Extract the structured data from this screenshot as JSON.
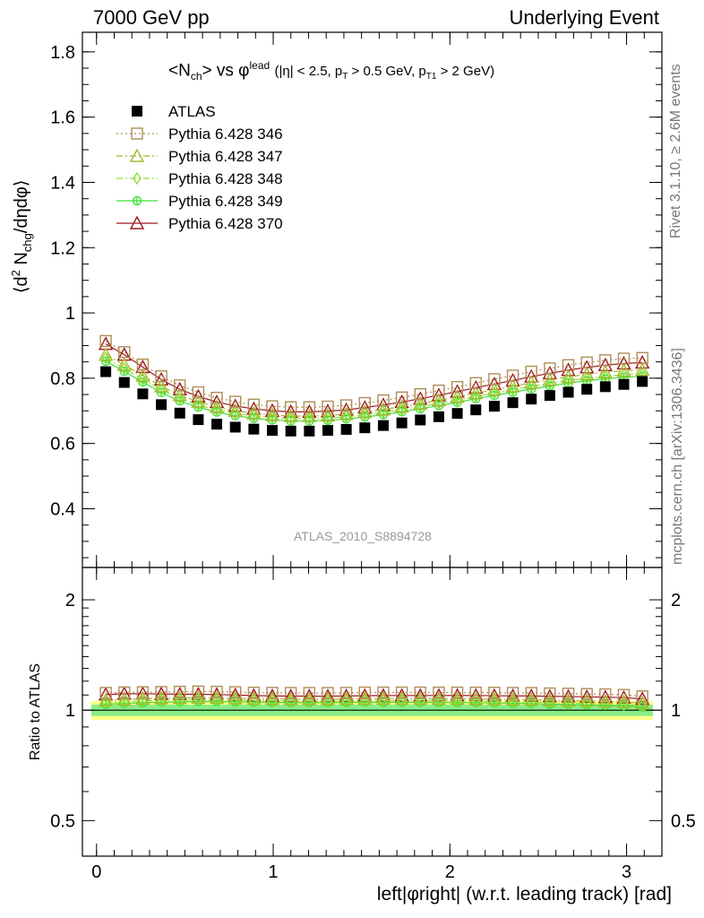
{
  "header": {
    "left": "7000 GeV pp",
    "right": "Underlying Event"
  },
  "side_labels": {
    "rivet": "Rivet 3.1.10, ≥ 2.6M events",
    "mcplots": "mcplots.cern.ch [arXiv:1306.3436]"
  },
  "analysis_id": "ATLAS_2010_S8894728",
  "chart_data": [
    {
      "type": "scatter",
      "title": {
        "main": "<N",
        "sub": "ch",
        "mid": "> vs φ",
        "sup": "lead",
        "cuts_a": "(|η| < 2.5, p",
        "cuts_sub_a": "T",
        "cuts_b": " > 0.5 GeV, p",
        "cuts_sub_b": "T1",
        "cuts_c": " > 2 GeV)"
      },
      "ylabel": {
        "a": "⟨d",
        "sup": "2",
        "b": " N",
        "sub": "chg",
        "c": "/dηdφ⟩"
      },
      "xlim": [
        -0.08,
        3.2
      ],
      "ylim": [
        0.22,
        1.86
      ],
      "yticks": [
        0.4,
        0.6,
        0.8,
        1,
        1.2,
        1.4,
        1.6,
        1.8
      ],
      "yticklabels": [
        "0.4",
        "0.6",
        "0.8",
        "1",
        "1.2",
        "1.4",
        "1.6",
        "1.8"
      ],
      "legend_position": "top-left",
      "x": [
        0.0524,
        0.1571,
        0.2618,
        0.3665,
        0.4712,
        0.576,
        0.6807,
        0.7854,
        0.8901,
        0.9948,
        1.0996,
        1.2043,
        1.309,
        1.4137,
        1.5184,
        1.6232,
        1.7279,
        1.8326,
        1.9373,
        2.042,
        2.1468,
        2.2515,
        2.3562,
        2.4609,
        2.5656,
        2.6704,
        2.7751,
        2.8798,
        2.9845,
        3.0892
      ],
      "series": [
        {
          "name": "ATLAS",
          "color": "#000000",
          "marker": "filled-square",
          "line": "none",
          "values": [
            0.82,
            0.787,
            0.752,
            0.719,
            0.693,
            0.673,
            0.659,
            0.65,
            0.644,
            0.64,
            0.638,
            0.638,
            0.64,
            0.643,
            0.648,
            0.655,
            0.663,
            0.672,
            0.682,
            0.692,
            0.703,
            0.714,
            0.725,
            0.736,
            0.747,
            0.757,
            0.766,
            0.774,
            0.781,
            0.79
          ]
        },
        {
          "name": "Pythia 6.428 346",
          "color": "#b08d57",
          "marker": "open-square",
          "line": "dotted",
          "values": [
            0.914,
            0.88,
            0.842,
            0.806,
            0.778,
            0.757,
            0.74,
            0.728,
            0.719,
            0.714,
            0.711,
            0.711,
            0.713,
            0.717,
            0.724,
            0.732,
            0.741,
            0.751,
            0.762,
            0.773,
            0.785,
            0.797,
            0.808,
            0.82,
            0.83,
            0.84,
            0.848,
            0.855,
            0.86,
            0.862
          ]
        },
        {
          "name": "Pythia 6.428 347",
          "color": "#a8b82e",
          "marker": "open-triangle",
          "line": "dashdot",
          "values": [
            0.872,
            0.841,
            0.808,
            0.775,
            0.748,
            0.728,
            0.712,
            0.7,
            0.692,
            0.687,
            0.684,
            0.684,
            0.686,
            0.69,
            0.696,
            0.704,
            0.713,
            0.722,
            0.732,
            0.743,
            0.754,
            0.765,
            0.775,
            0.786,
            0.795,
            0.804,
            0.812,
            0.818,
            0.823,
            0.826
          ]
        },
        {
          "name": "Pythia 6.428 348",
          "color": "#8fe03a",
          "marker": "open-diamond",
          "line": "dashdot",
          "values": [
            0.862,
            0.83,
            0.797,
            0.765,
            0.738,
            0.718,
            0.703,
            0.692,
            0.684,
            0.679,
            0.676,
            0.676,
            0.678,
            0.682,
            0.688,
            0.695,
            0.704,
            0.713,
            0.723,
            0.733,
            0.744,
            0.755,
            0.765,
            0.775,
            0.784,
            0.793,
            0.8,
            0.806,
            0.811,
            0.814
          ]
        },
        {
          "name": "Pythia 6.428 349",
          "color": "#3ee03a",
          "marker": "open-circle-cross",
          "line": "solid",
          "values": [
            0.852,
            0.821,
            0.788,
            0.756,
            0.73,
            0.711,
            0.696,
            0.685,
            0.677,
            0.672,
            0.669,
            0.669,
            0.671,
            0.675,
            0.681,
            0.688,
            0.697,
            0.706,
            0.716,
            0.726,
            0.737,
            0.747,
            0.757,
            0.767,
            0.776,
            0.785,
            0.792,
            0.798,
            0.803,
            0.806
          ]
        },
        {
          "name": "Pythia 6.428 370",
          "color": "#a01820",
          "marker": "open-triangle",
          "line": "solid",
          "values": [
            0.905,
            0.872,
            0.834,
            0.796,
            0.766,
            0.744,
            0.727,
            0.715,
            0.706,
            0.7,
            0.697,
            0.697,
            0.699,
            0.703,
            0.71,
            0.718,
            0.727,
            0.737,
            0.748,
            0.759,
            0.771,
            0.782,
            0.793,
            0.805,
            0.815,
            0.825,
            0.833,
            0.84,
            0.845,
            0.848
          ]
        }
      ]
    },
    {
      "type": "scatter",
      "ylabel": "Ratio to ATLAS",
      "xlabel": "left|φright| (w.r.t. leading track) [rad]",
      "xlim": [
        -0.08,
        3.2
      ],
      "xticks": [
        0,
        1,
        2,
        3
      ],
      "xticklabels": [
        "0",
        "1",
        "2",
        "3"
      ],
      "ylim": [
        0.4,
        2.45
      ],
      "ylog": true,
      "yticks": [
        0.5,
        1,
        2
      ],
      "yticklabels": [
        "0.5",
        "1",
        "2"
      ],
      "reference_band": {
        "low": 0.94,
        "high": 1.06,
        "inner_low": 0.965,
        "inner_high": 1.035,
        "color_outer": "#ffff88",
        "color_inner": "#88ee88"
      },
      "series_ratio": "each Pythia series divided by ATLAS"
    }
  ]
}
